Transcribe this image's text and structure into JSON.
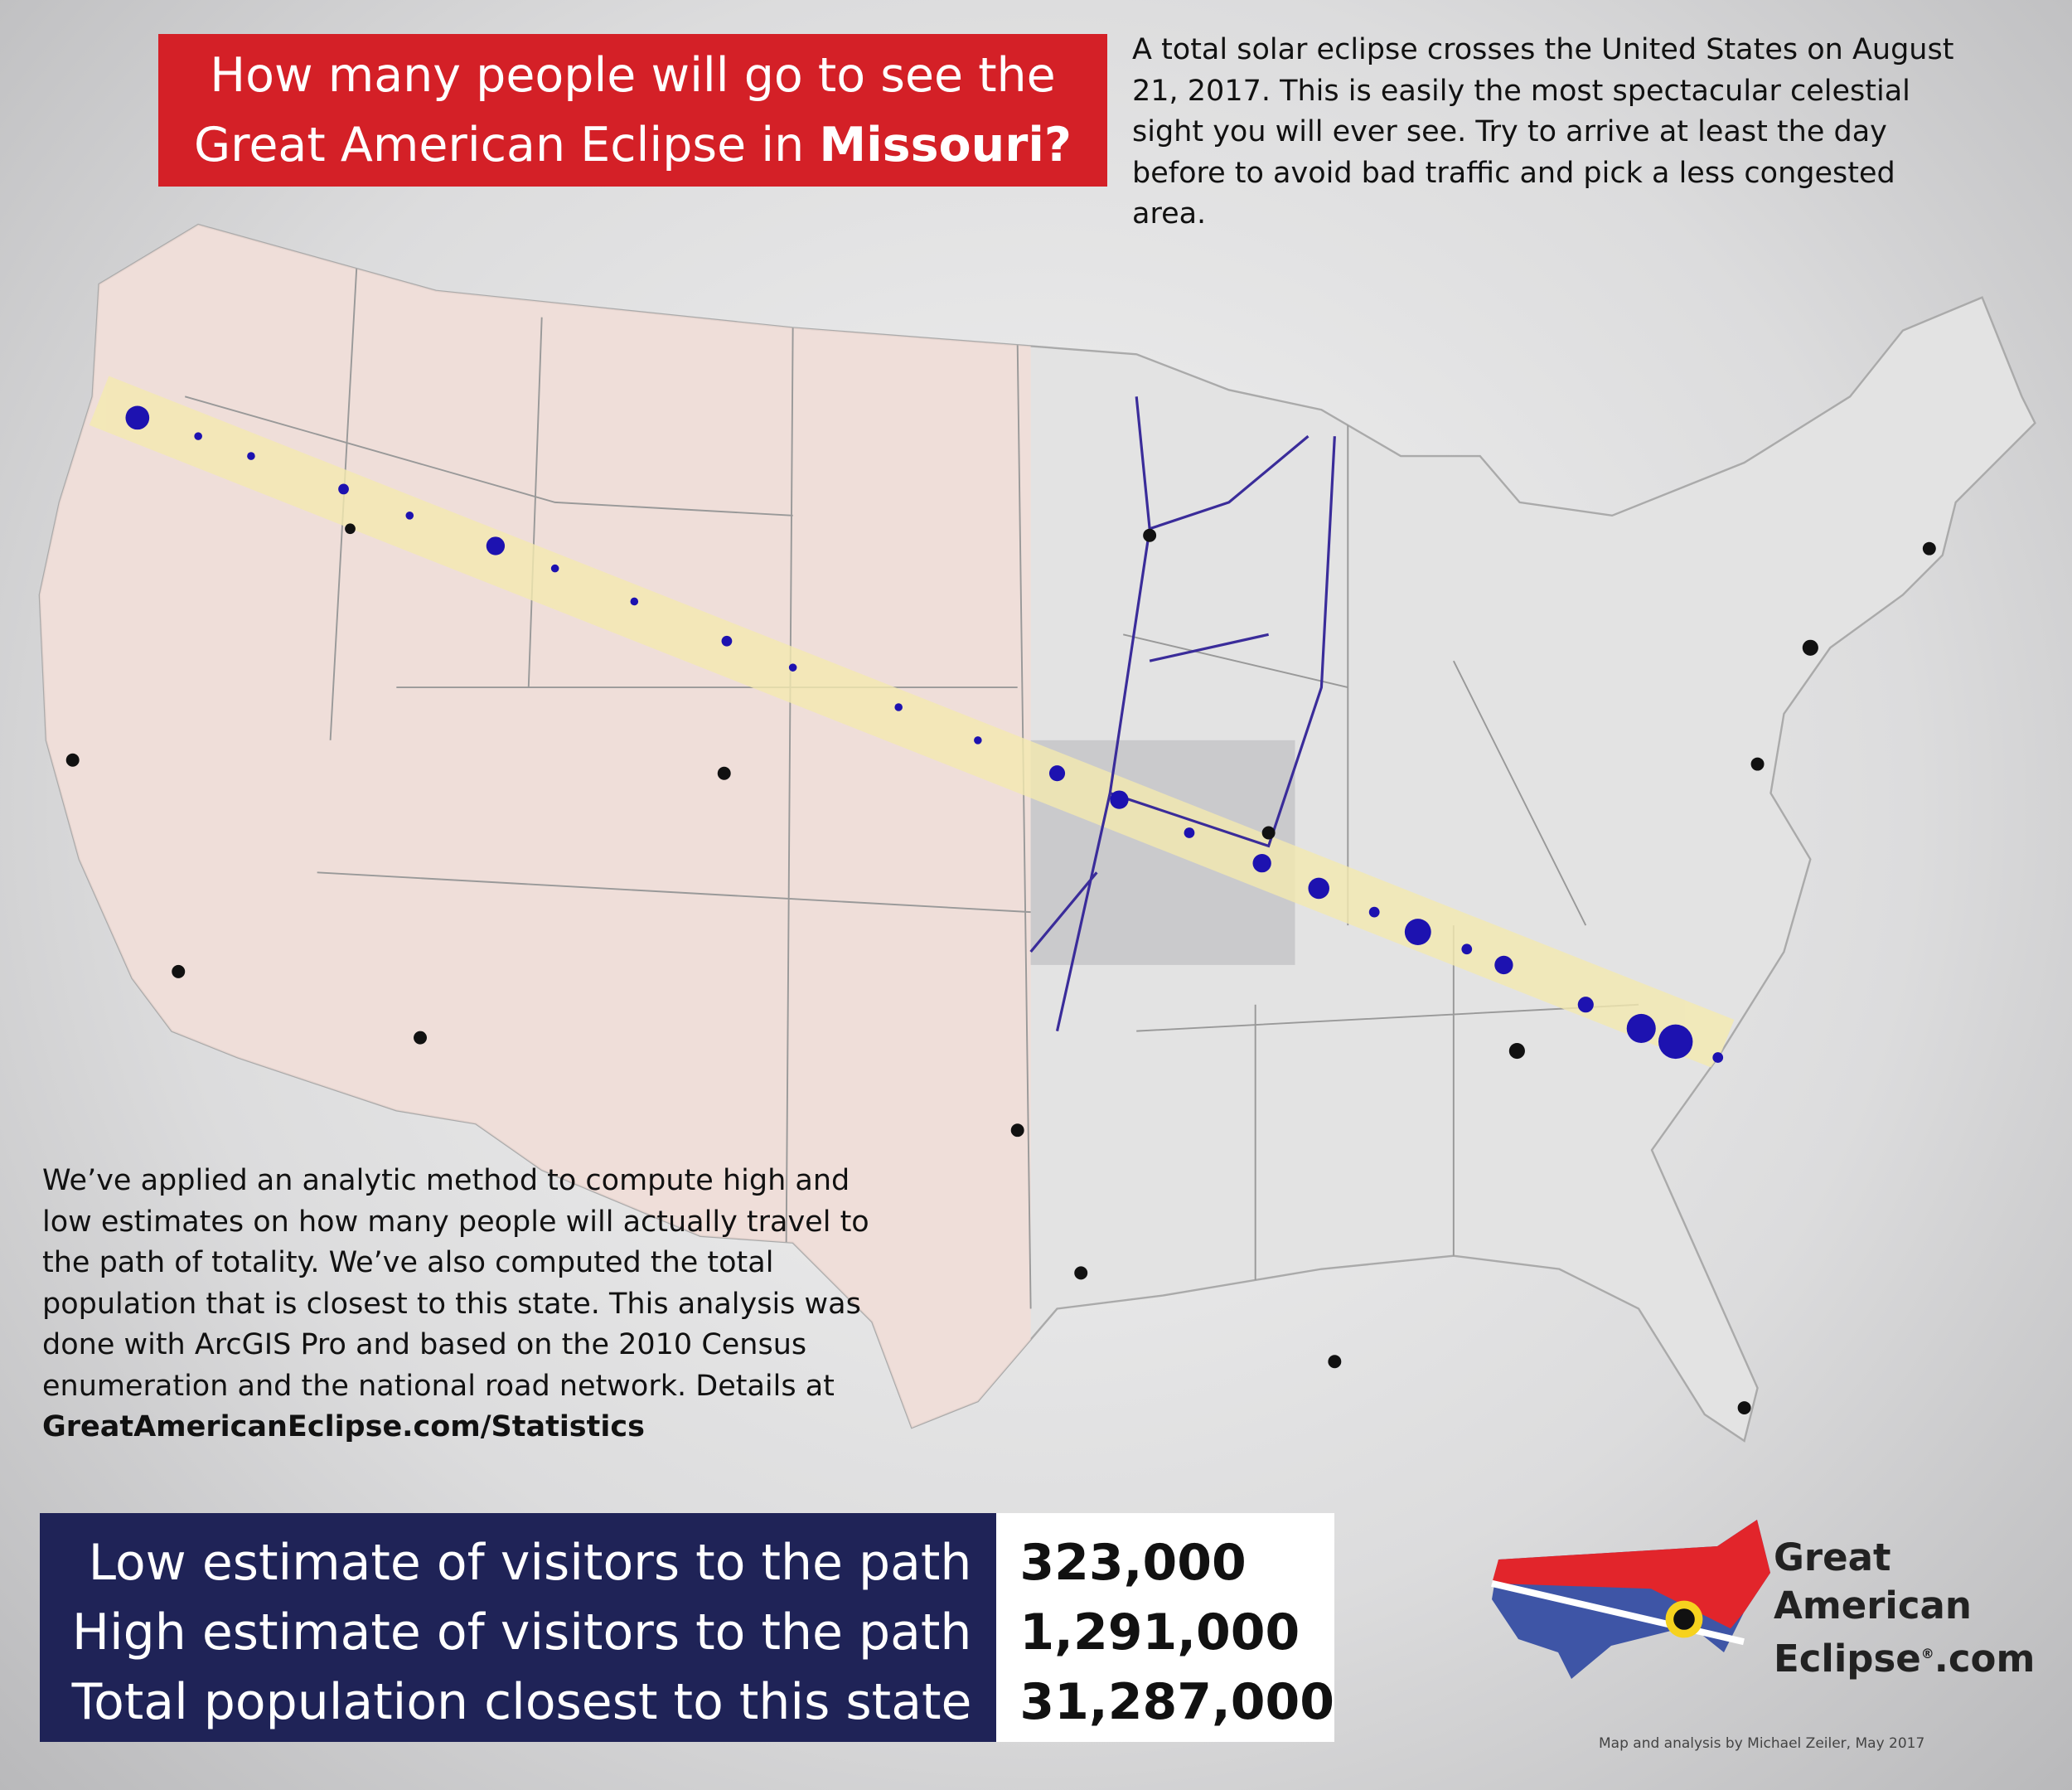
{
  "title": {
    "text": "How many people will go to see the Great American Eclipse in",
    "state": "Missouri?"
  },
  "intro": "A total solar eclipse crosses the United States on August 21, 2017. This is easily the most spectacular celestial sight you will ever see. Try to arrive at least the day before to avoid bad traffic and pick a less congested area.",
  "method": {
    "text": "We’ve applied an analytic method to compute high and low estimates on how many people will actually travel to the path of totality. We’ve also computed the total population that is closest to this state. This analysis was done with ArcGIS Pro and based on the 2010 Census enumeration and the national road network. Details at",
    "link": "GreatAmericanEclipse.com/Statistics"
  },
  "stats": {
    "rows": [
      {
        "label": "Low estimate of visitors to the path",
        "value": "323,000"
      },
      {
        "label": "High estimate of visitors to the path",
        "value": "1,291,000"
      },
      {
        "label": "Total population closest to this state",
        "value": "31,287,000"
      }
    ]
  },
  "logo": {
    "line1": "Great",
    "line2": "American",
    "line3": "Eclipse",
    "mark": "®",
    "suffix": ".com"
  },
  "credit": "Map and analysis by Michael Zeiler, May 2017"
}
